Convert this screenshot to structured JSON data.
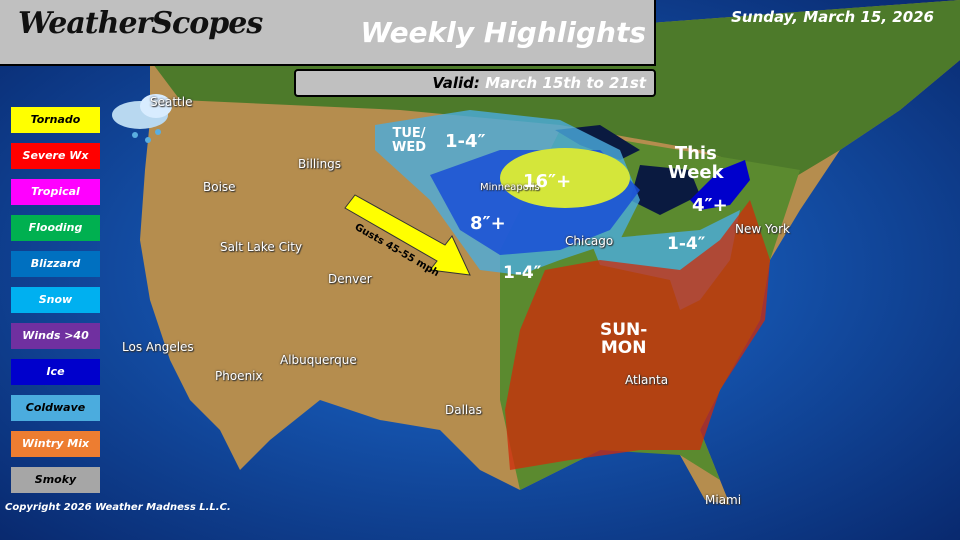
{
  "header": {
    "logo": "WeatherScopes",
    "title": "Weekly Highlights",
    "date": "Sunday, March 15, 2026",
    "valid_label": "Valid:",
    "valid_text": "March 15th to 21st"
  },
  "legend": [
    {
      "label": "Tornado",
      "color": "#ffff00",
      "text": "#000"
    },
    {
      "label": "Severe Wx",
      "color": "#ff0000",
      "text": "#fff"
    },
    {
      "label": "Tropical",
      "color": "#ff00ff",
      "text": "#fff"
    },
    {
      "label": "Flooding",
      "color": "#00b050",
      "text": "#fff"
    },
    {
      "label": "Blizzard",
      "color": "#0070c0",
      "text": "#fff"
    },
    {
      "label": "Snow",
      "color": "#00b0f0",
      "text": "#fff"
    },
    {
      "label": "Winds >40",
      "color": "#7030a0",
      "text": "#fff"
    },
    {
      "label": "Ice",
      "color": "#0000cc",
      "text": "#fff"
    },
    {
      "label": "Coldwave",
      "color": "#4bacde",
      "text": "#000"
    },
    {
      "label": "Wintry Mix",
      "color": "#ed7d31",
      "text": "#fff"
    },
    {
      "label": "Smoky",
      "color": "#a6a6a6",
      "text": "#000"
    }
  ],
  "cities": [
    "Seattle",
    "Boise",
    "Billings",
    "Salt Lake City",
    "Denver",
    "Los Angeles",
    "Phoenix",
    "Albuquerque",
    "Dallas",
    "Minneapolis",
    "Chicago",
    "New York",
    "Atlanta",
    "Miami"
  ],
  "annotations": {
    "tue_wed": "TUE/\nWED",
    "snow_1_4_nw": "1-4″",
    "snow_16": "16″+",
    "snow_8": "8″+",
    "snow_1_4_sw": "1-4″",
    "this_week": "This\nWeek",
    "ice_4": "4″+",
    "snow_1_4_e": "1-4″",
    "sun_mon": "SUN-\nMON",
    "wind_arrow": "Gusts 45-55 mph"
  },
  "footer": {
    "copyright": "Copyright 2026 Weather Madness L.L.C."
  }
}
